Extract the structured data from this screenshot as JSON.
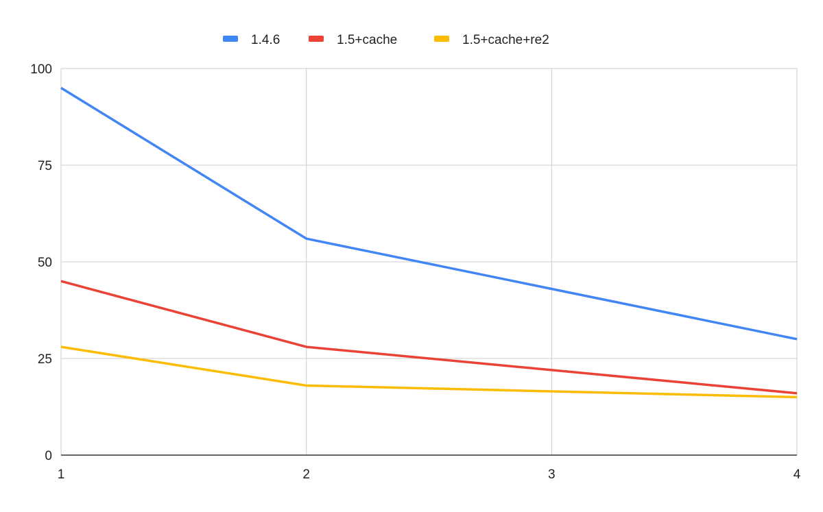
{
  "chart_data": {
    "type": "line",
    "title": "",
    "xlabel": "",
    "ylabel": "",
    "x": [
      1,
      2,
      3,
      4
    ],
    "x_tick_labels": [
      "1",
      "2",
      "3",
      "4"
    ],
    "y_tick_labels": [
      "0",
      "25",
      "50",
      "75",
      "100"
    ],
    "y_ticks": [
      0,
      25,
      50,
      75,
      100
    ],
    "xlim": [
      1,
      4
    ],
    "ylim": [
      0,
      100
    ],
    "grid": true,
    "legend_position": "top-center",
    "series": [
      {
        "name": "1.4.6",
        "color": "#4285F4",
        "values": [
          95,
          56,
          43,
          30
        ]
      },
      {
        "name": "1.5+cache",
        "color": "#EA4335",
        "values": [
          45,
          28,
          22,
          16
        ]
      },
      {
        "name": "1.5+cache+re2",
        "color": "#FBBC04",
        "values": [
          28,
          18,
          16.5,
          15
        ]
      }
    ]
  }
}
